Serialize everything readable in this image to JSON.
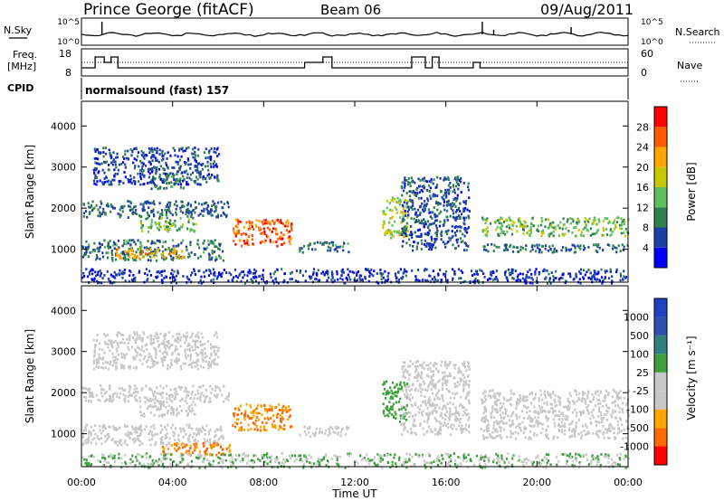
{
  "header": {
    "station": "Prince George (fitACF)",
    "beam": "Beam 06",
    "date": "09/Aug/2011"
  },
  "noise_panel": {
    "left_label": "N.Sky",
    "right_label": "N.Search",
    "tick_top": "10^5",
    "tick_bottom": "10^0"
  },
  "freq_panel": {
    "left_label_1": "Freq.",
    "left_label_2": "[MHz]",
    "left_tick_top": "18",
    "left_tick_bottom": "8",
    "right_label": "Nave",
    "right_tick_top": "60",
    "right_tick_bottom": "0"
  },
  "cpid": {
    "label": "CPID",
    "value": "normalsound (fast) 157"
  },
  "colors": {
    "power": [
      "#0000ff",
      "#1f3fa8",
      "#2f7f4f",
      "#5fbf5f",
      "#c8c800",
      "#ffa500",
      "#ff5a00",
      "#ff0000"
    ],
    "velocity": [
      "#ff0000",
      "#ff6a00",
      "#ffa500",
      "#c8c8c8",
      "#c8c8c8",
      "#3f9f3f",
      "#2f7f7f",
      "#2f4fb0",
      "#2040c0"
    ]
  },
  "chart_data": [
    {
      "type": "heatmap",
      "quantity": "Power",
      "ylabel": "Slant Range [km]",
      "yticks": [
        "1000",
        "2000",
        "3000",
        "4000"
      ],
      "ylim": [
        200,
        4600
      ],
      "xlim_hours": [
        0,
        24
      ],
      "colorbar_label": "Power [dB]",
      "colorbar_ticks": [
        "4",
        "8",
        "12",
        "16",
        "20",
        "24",
        "28"
      ],
      "colorbar_range": [
        0,
        32
      ],
      "scatter_regions": [
        {
          "t0": 0.0,
          "t1": 6.2,
          "r0": 750,
          "r1": 1250,
          "v": 9
        },
        {
          "t0": 1.5,
          "t1": 4.5,
          "r0": 800,
          "r1": 1050,
          "v": 21
        },
        {
          "t0": 0.0,
          "t1": 6.5,
          "r0": 1800,
          "r1": 2200,
          "v": 8
        },
        {
          "t0": 2.5,
          "t1": 5.0,
          "r0": 1450,
          "r1": 1800,
          "v": 14
        },
        {
          "t0": 3.0,
          "t1": 4.5,
          "r0": 2500,
          "r1": 2900,
          "v": 11
        },
        {
          "t0": 0.5,
          "t1": 6.0,
          "r0": 2600,
          "r1": 3500,
          "v": 6
        },
        {
          "t0": 6.6,
          "t1": 9.2,
          "r0": 1100,
          "r1": 1750,
          "v": 26
        },
        {
          "t0": 9.5,
          "t1": 11.7,
          "r0": 950,
          "r1": 1200,
          "v": 9
        },
        {
          "t0": 13.2,
          "t1": 14.3,
          "r0": 1300,
          "r1": 2300,
          "v": 17
        },
        {
          "t0": 14.0,
          "t1": 17.0,
          "r0": 1000,
          "r1": 2800,
          "v": 7
        },
        {
          "t0": 17.5,
          "t1": 24.0,
          "r0": 1350,
          "r1": 1800,
          "v": 14
        },
        {
          "t0": 17.5,
          "t1": 24.0,
          "r0": 950,
          "r1": 1150,
          "v": 8
        },
        {
          "t0": 0.0,
          "t1": 24.0,
          "r0": 200,
          "r1": 550,
          "v": 5
        }
      ]
    },
    {
      "type": "heatmap",
      "quantity": "Velocity",
      "ylabel": "Slant Range [km]",
      "yticks": [
        "1000",
        "2000",
        "3000",
        "4000"
      ],
      "ylim": [
        200,
        4600
      ],
      "xlabel": "Time UT",
      "xticks": [
        "00:00",
        "04:00",
        "08:00",
        "12:00",
        "16:00",
        "20:00",
        "00:00"
      ],
      "xlim_hours": [
        0,
        24
      ],
      "colorbar_label": "Velocity [m s⁻¹]",
      "colorbar_ticks": [
        "1000",
        "500",
        "100",
        "25",
        "-25",
        "-100",
        "-500",
        "-1000"
      ],
      "scatter_regions": [
        {
          "t0": 0.0,
          "t1": 6.2,
          "r0": 750,
          "r1": 1250,
          "v": 0
        },
        {
          "t0": 3.5,
          "t1": 6.5,
          "r0": 500,
          "r1": 800,
          "v": -300
        },
        {
          "t0": 0.0,
          "t1": 6.5,
          "r0": 1800,
          "r1": 2200,
          "v": 0
        },
        {
          "t0": 2.5,
          "t1": 5.0,
          "r0": 1450,
          "r1": 1800,
          "v": 0
        },
        {
          "t0": 0.5,
          "t1": 6.0,
          "r0": 2600,
          "r1": 3500,
          "v": 0
        },
        {
          "t0": 6.6,
          "t1": 9.2,
          "r0": 1100,
          "r1": 1750,
          "v": -300
        },
        {
          "t0": 9.5,
          "t1": 11.7,
          "r0": 950,
          "r1": 1200,
          "v": 0
        },
        {
          "t0": 13.2,
          "t1": 14.3,
          "r0": 1300,
          "r1": 2300,
          "v": 200
        },
        {
          "t0": 14.0,
          "t1": 17.0,
          "r0": 1000,
          "r1": 2800,
          "v": 0
        },
        {
          "t0": 17.5,
          "t1": 24.0,
          "r0": 900,
          "r1": 2100,
          "v": 0
        },
        {
          "t0": 0.0,
          "t1": 24.0,
          "r0": 200,
          "r1": 550,
          "v": 60
        }
      ]
    }
  ]
}
